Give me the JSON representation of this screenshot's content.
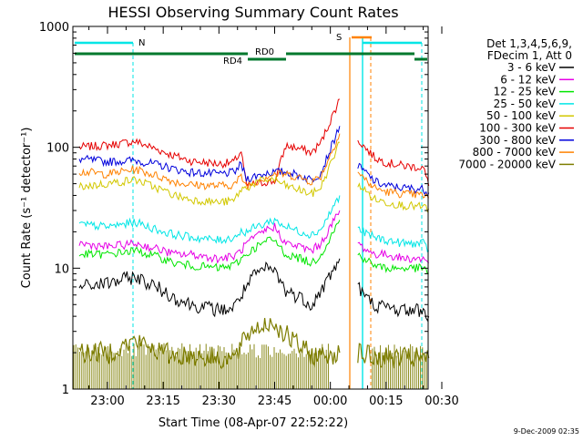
{
  "chart_data": {
    "type": "line",
    "title": "HESSI Observing Summary Count Rates",
    "xlabel": "Start Time (08-Apr-07 22:52:22)",
    "ylabel": "Count Rate (s⁻¹ detector⁻¹)",
    "yscale": "log",
    "ylim": [
      1,
      1000
    ],
    "xlim": [
      "22:52:22",
      "00:31:00"
    ],
    "x_ticks": [
      "23:00",
      "23:15",
      "23:30",
      "23:45",
      "00:00",
      "00:15",
      "00:30"
    ],
    "y_ticks": [
      "1",
      "10",
      "100",
      "1000"
    ],
    "grid": false,
    "legend_position": "right",
    "legend": {
      "header": [
        "Det 1,3,4,5,6,9,",
        "FDecim 1, Att 0"
      ],
      "entries": [
        {
          "label": "3 - 6 keV",
          "color": "#000000"
        },
        {
          "label": "6 - 12 keV",
          "color": "#e600e6"
        },
        {
          "label": "12 - 25 keV",
          "color": "#00e600"
        },
        {
          "label": "25 - 50 keV",
          "color": "#00e6e6"
        },
        {
          "label": "50 - 100 keV",
          "color": "#d2c800"
        },
        {
          "label": "100 - 300 keV",
          "color": "#e60000"
        },
        {
          "label": "300 - 800 keV",
          "color": "#0000dc"
        },
        {
          "label": "800 - 7000 keV",
          "color": "#ff8200"
        },
        {
          "label": "7000 - 20000 keV",
          "color": "#7d7d00"
        }
      ]
    },
    "flag_labels": {
      "night": "N",
      "saa": "S",
      "rd0": "RD0",
      "rd4": "RD4"
    },
    "x_minutes": [
      -7.6,
      0,
      7.5,
      15,
      18,
      22.5,
      30,
      34,
      36,
      37.4,
      40,
      42,
      43,
      45,
      48,
      52,
      55,
      57.5,
      62.5,
      63.5,
      67.4,
      70,
      72,
      75,
      80,
      85,
      86.5
    ],
    "series": [
      {
        "name": "100 - 300 keV",
        "values": [
          100,
          104,
          112,
          92,
          85,
          77,
          73,
          75,
          93,
          48,
          50,
          51,
          52,
          52,
          103,
          97,
          90,
          110,
          250,
          null,
          115,
          95,
          82,
          75,
          70,
          68,
          48
        ]
      },
      {
        "name": "300 - 800 keV",
        "values": [
          80,
          76,
          78,
          70,
          66,
          62,
          60,
          62,
          72,
          55,
          58,
          60,
          62,
          62,
          63,
          58,
          54,
          62,
          150,
          null,
          70,
          60,
          52,
          48,
          46,
          45,
          42
        ]
      },
      {
        "name": "800 - 7000 keV",
        "values": [
          63,
          60,
          66,
          56,
          52,
          49,
          48,
          49,
          57,
          48,
          52,
          55,
          58,
          60,
          60,
          56,
          52,
          58,
          130,
          null,
          62,
          52,
          46,
          43,
          41,
          40,
          38
        ]
      },
      {
        "name": "50 - 100 keV",
        "values": [
          47,
          50,
          54,
          44,
          40,
          37,
          35,
          36,
          45,
          46,
          51,
          53,
          54,
          54,
          48,
          44,
          41,
          47,
          110,
          null,
          50,
          42,
          37,
          35,
          33,
          32,
          31
        ]
      },
      {
        "name": "25 - 50 keV",
        "values": [
          23,
          22,
          24,
          20,
          19,
          18,
          17,
          18,
          20,
          20,
          22,
          23,
          24,
          25,
          22,
          20,
          19,
          21,
          40,
          null,
          21,
          19,
          18,
          17,
          16,
          16,
          14
        ]
      },
      {
        "name": "6 - 12 keV",
        "values": [
          16,
          15,
          16,
          14,
          13,
          13,
          12,
          12.5,
          14,
          16,
          18,
          20,
          21,
          22,
          16,
          15,
          14,
          16,
          30,
          null,
          16,
          14,
          13,
          13,
          12,
          12,
          11
        ]
      },
      {
        "name": "12 - 25 keV",
        "values": [
          13,
          13,
          14,
          12,
          11,
          10.5,
          10,
          10.5,
          12,
          13,
          15,
          16,
          17,
          17,
          13,
          12,
          11,
          13,
          25,
          null,
          13,
          11.5,
          10.5,
          10,
          10,
          10,
          9
        ]
      },
      {
        "name": "3 - 6 keV",
        "values": [
          7,
          7.5,
          8.5,
          6.5,
          5.7,
          5,
          4.5,
          4.7,
          6,
          7,
          9,
          9.5,
          10,
          9.5,
          6.5,
          5.7,
          5,
          6.5,
          12,
          null,
          7,
          5.5,
          5,
          4.7,
          4.5,
          4.5,
          4
        ]
      },
      {
        "name": "7000 - 20000 keV",
        "values": [
          2,
          2,
          2.5,
          2,
          1.9,
          1.9,
          1.8,
          1.8,
          2.2,
          2.8,
          3.2,
          3.4,
          3.5,
          3.5,
          2.8,
          2.2,
          1.9,
          1.9,
          2,
          null,
          2,
          1.9,
          1.8,
          1.8,
          1.8,
          1.8,
          1.8
        ]
      }
    ]
  },
  "timestamp": "9-Dec-2009 02:35"
}
